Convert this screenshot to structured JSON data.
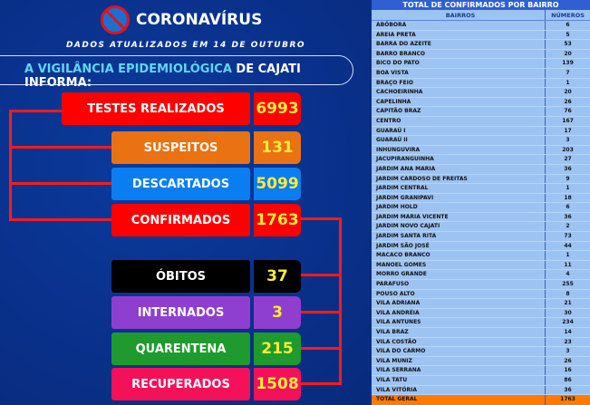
{
  "header": {
    "title": "CORONAVÍRUS",
    "subtitle": "DADOS ATUALIZADOS EM 14 DE OUTUBRO",
    "banner_highlight": "A VIGILÂNCIA EPIDEMIOLÓGICA",
    "banner_rest": " DE CAJATI INFORMA:"
  },
  "stats": [
    {
      "label": "TESTES REALIZADOS",
      "value": "6993",
      "color": "#ff0000"
    },
    {
      "label": "SUSPEITOS",
      "value": "131",
      "color": "#ea7212"
    },
    {
      "label": "DESCARTADOS",
      "value": "5099",
      "color": "#0a7ef0"
    },
    {
      "label": "CONFIRMADOS",
      "value": "1763",
      "color": "#ff0000"
    },
    {
      "label": "ÓBITOS",
      "value": "37",
      "color": "#000000"
    },
    {
      "label": "INTERNADOS",
      "value": "3",
      "color": "#8e3fd0"
    },
    {
      "label": "QUARENTENA",
      "value": "215",
      "color": "#1f9a2e"
    },
    {
      "label": "RECUPERADOS",
      "value": "1508",
      "color": "#f5105a"
    }
  ],
  "table": {
    "title": "TOTAL DE CONFIRMADOS POR BAIRRO",
    "col1": "BAIRROS",
    "col2": "NÚMEROS",
    "rows": [
      [
        "ABÓBORA",
        "6"
      ],
      [
        "AREIA PRETA",
        "5"
      ],
      [
        "BARRA DO AZEITE",
        "53"
      ],
      [
        "BARRO BRANCO",
        "20"
      ],
      [
        "BICO DO PATO",
        "139"
      ],
      [
        "BOA VISTA",
        "7"
      ],
      [
        "BRAÇO FEIO",
        "1"
      ],
      [
        "CACHOEIRINHA",
        "20"
      ],
      [
        "CAPELINHA",
        "26"
      ],
      [
        "CAPITÃO BRAZ",
        "76"
      ],
      [
        "CENTRO",
        "167"
      ],
      [
        "GUARAÚ I",
        "17"
      ],
      [
        "GUARAÚ II",
        "3"
      ],
      [
        "INHUNGUVIRA",
        "203"
      ],
      [
        "JACUPIRANGUINHA",
        "27"
      ],
      [
        "JARDIM ANA MARIA",
        "36"
      ],
      [
        "JARDIM CARDOSO DE FREITAS",
        "9"
      ],
      [
        "JARDIM CENTRAL",
        "1"
      ],
      [
        "JARDIM GRANIPAVI",
        "18"
      ],
      [
        "JARDIM HOLD",
        "6"
      ],
      [
        "JARDIM MARIA VICENTE",
        "36"
      ],
      [
        "JARDIM NOVO CAJATI",
        "2"
      ],
      [
        "JARDIM SANTA RITA",
        "73"
      ],
      [
        "JARDIM SÃO JOSÉ",
        "44"
      ],
      [
        "MACACO BRANCO",
        "1"
      ],
      [
        "MANOEL GOMES",
        "11"
      ],
      [
        "MORRO GRANDE",
        "4"
      ],
      [
        "PARAFUSO",
        "255"
      ],
      [
        "POUSO ALTO",
        "8"
      ],
      [
        "VILA ADRIANA",
        "21"
      ],
      [
        "VILA ANDRÉIA",
        "30"
      ],
      [
        "VILA ANTUNES",
        "234"
      ],
      [
        "VILA BRAZ",
        "14"
      ],
      [
        "VILA COSTÃO",
        "23"
      ],
      [
        "VILA DO CARMO",
        "3"
      ],
      [
        "VILA MUNIZ",
        "26"
      ],
      [
        "VILA SERRANA",
        "16"
      ],
      [
        "VILA TATU",
        "86"
      ],
      [
        "VILA VITÓRIA",
        "36"
      ]
    ],
    "total_label": "TOTAL GERAL",
    "total_value": "1763"
  }
}
